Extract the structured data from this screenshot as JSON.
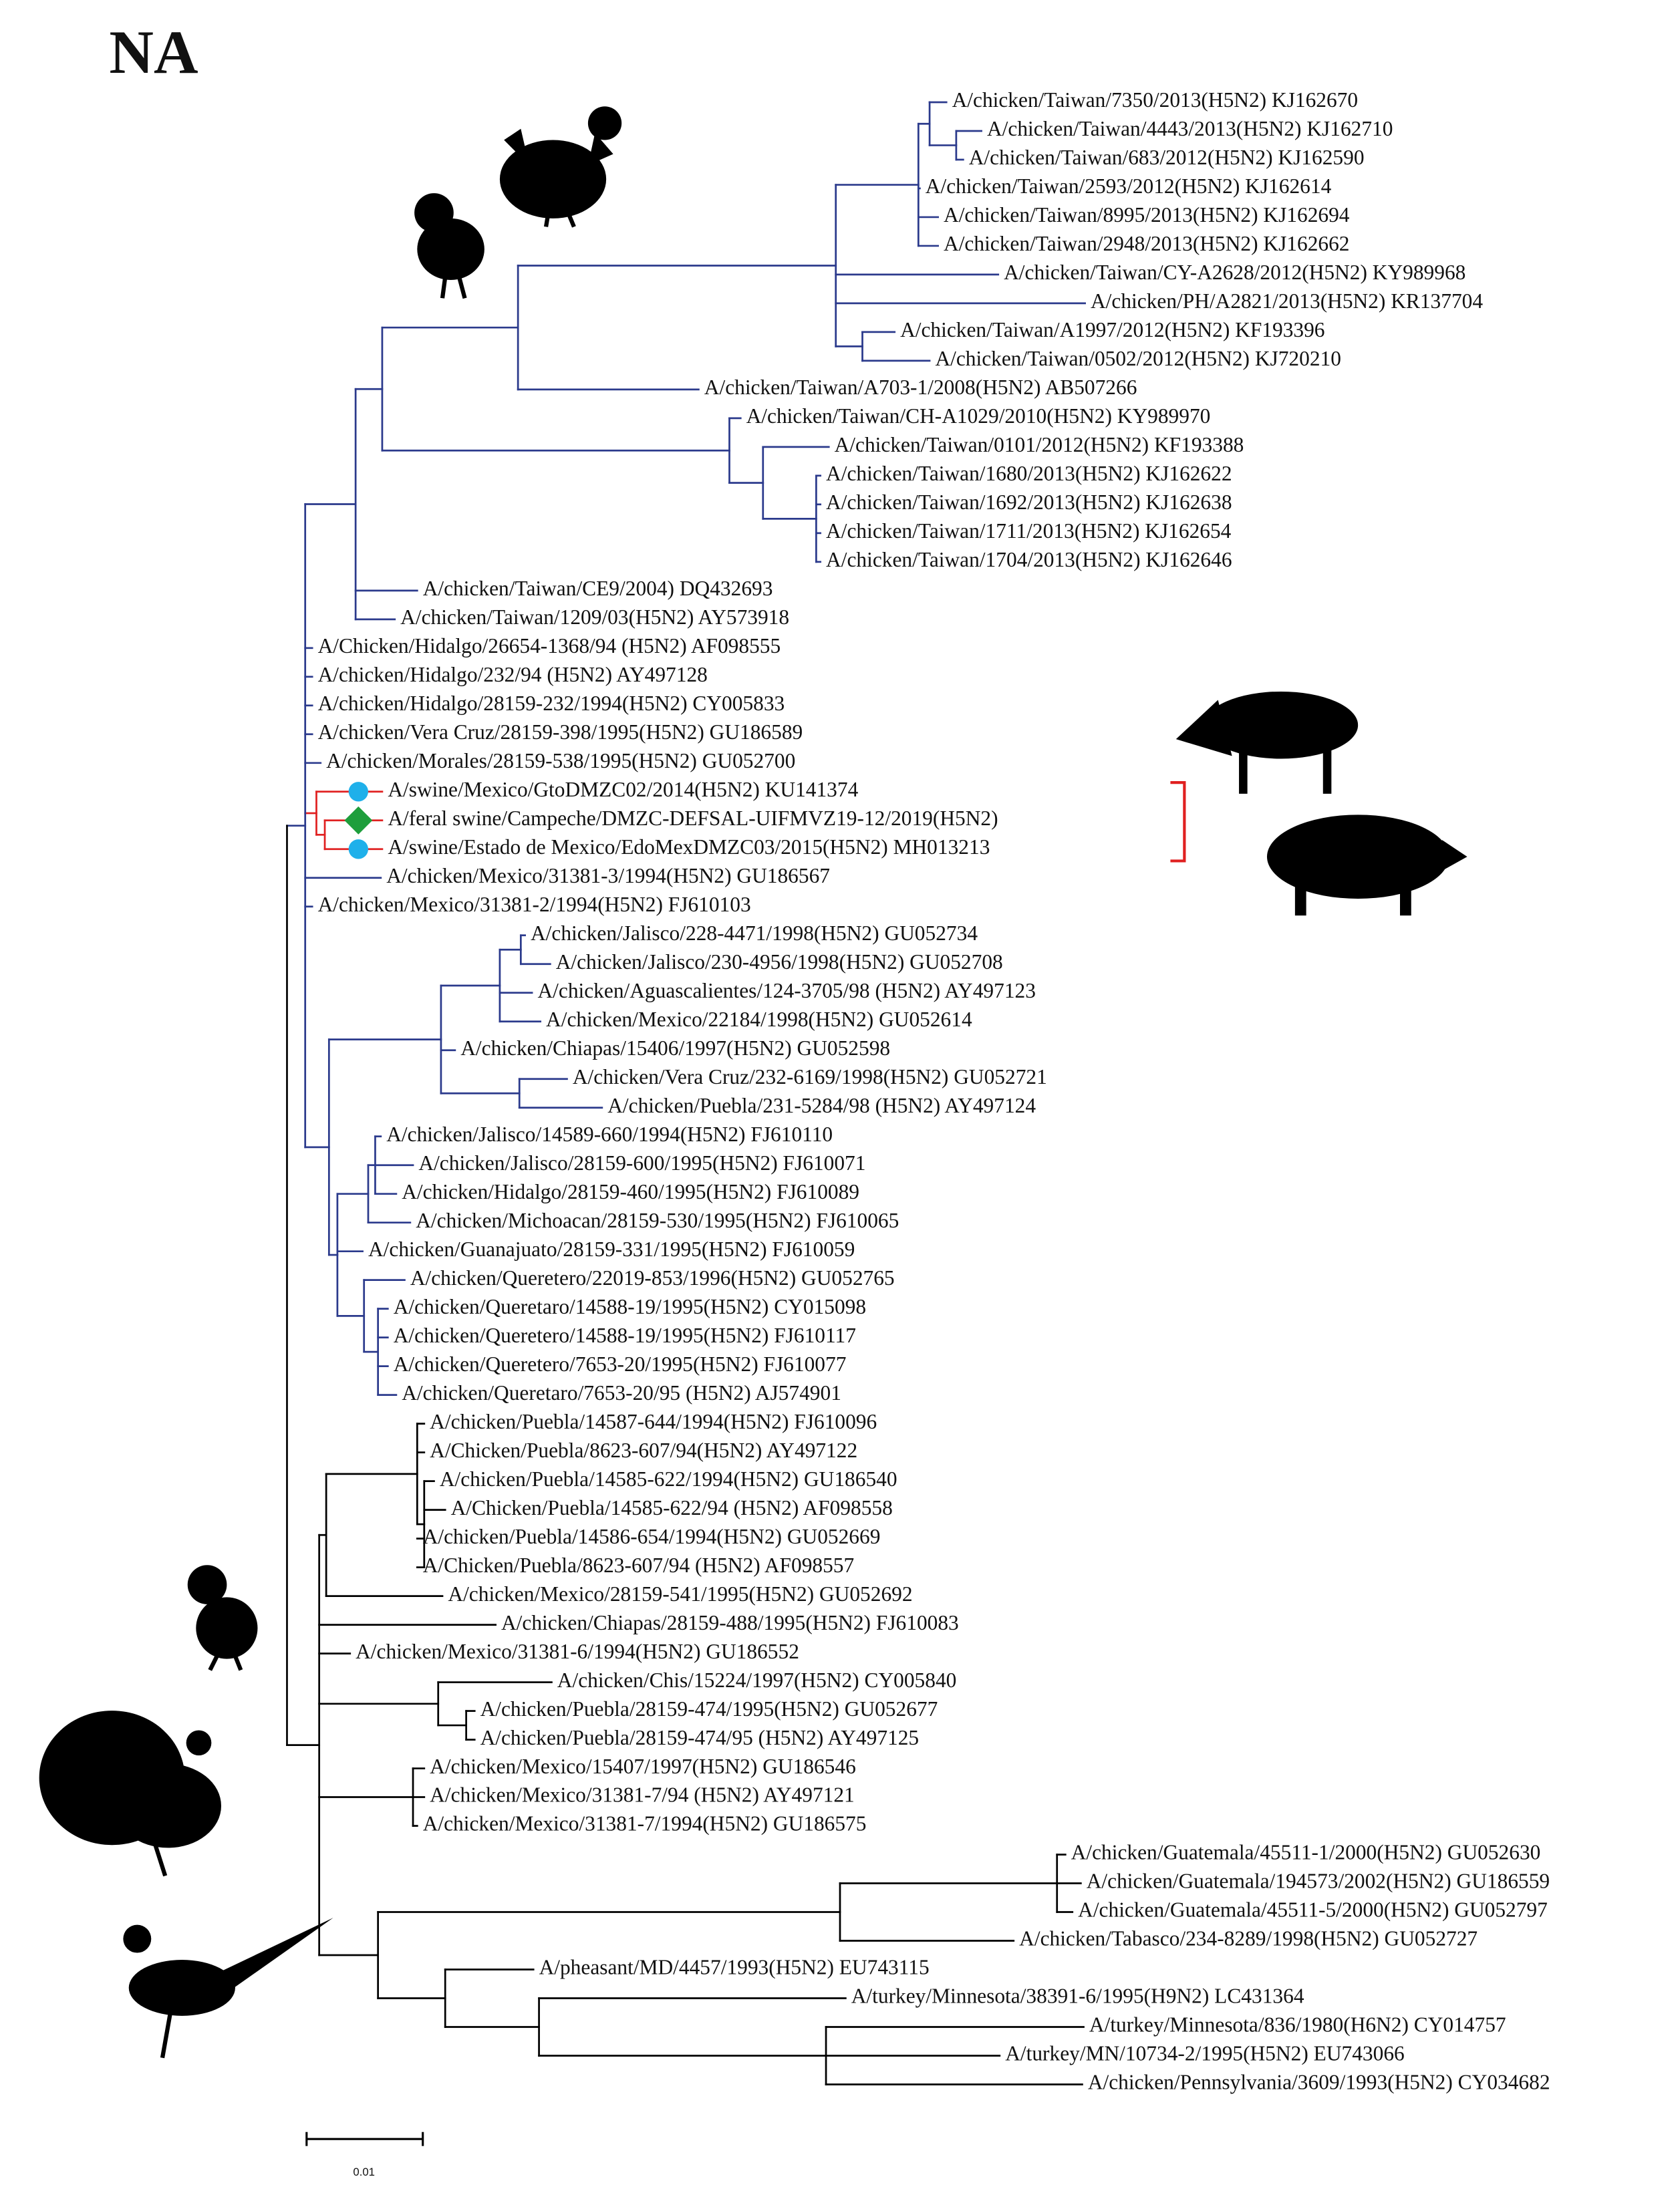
{
  "title": "NA",
  "leaves": [
    "A/chicken/Taiwan/7350/2013(H5N2) KJ162670",
    "A/chicken/Taiwan/4443/2013(H5N2) KJ162710",
    "A/chicken/Taiwan/683/2012(H5N2) KJ162590",
    "A/chicken/Taiwan/2593/2012(H5N2) KJ162614",
    "A/chicken/Taiwan/8995/2013(H5N2) KJ162694",
    "A/chicken/Taiwan/2948/2013(H5N2) KJ162662",
    "A/chicken/Taiwan/CY-A2628/2012(H5N2) KY989968",
    "A/chicken/PH/A2821/2013(H5N2) KR137704",
    "A/chicken/Taiwan/A1997/2012(H5N2) KF193396",
    "A/chicken/Taiwan/0502/2012(H5N2) KJ720210",
    "A/chicken/Taiwan/A703-1/2008(H5N2) AB507266",
    "A/chicken/Taiwan/CH-A1029/2010(H5N2) KY989970",
    "A/chicken/Taiwan/0101/2012(H5N2) KF193388",
    "A/chicken/Taiwan/1680/2013(H5N2) KJ162622",
    "A/chicken/Taiwan/1692/2013(H5N2) KJ162638",
    "A/chicken/Taiwan/1711/2013(H5N2) KJ162654",
    "A/chicken/Taiwan/1704/2013(H5N2) KJ162646",
    "A/chicken/Taiwan/CE9/2004) DQ432693",
    "A/chicken/Taiwan/1209/03(H5N2) AY573918",
    "A/Chicken/Hidalgo/26654-1368/94 (H5N2) AF098555",
    "A/chicken/Hidalgo/232/94 (H5N2) AY497128",
    "A/chicken/Hidalgo/28159-232/1994(H5N2) CY005833",
    "A/chicken/Vera Cruz/28159-398/1995(H5N2) GU186589",
    "A/chicken/Morales/28159-538/1995(H5N2) GU052700",
    "A/swine/Mexico/GtoDMZC02/2014(H5N2) KU141374",
    "A/feral swine/Campeche/DMZC-DEFSAL-UIFMVZ19-12/2019(H5N2)",
    "A/swine/Estado de Mexico/EdoMexDMZC03/2015(H5N2) MH013213",
    "A/chicken/Mexico/31381-3/1994(H5N2) GU186567",
    "A/chicken/Mexico/31381-2/1994(H5N2) FJ610103",
    "A/chicken/Jalisco/228-4471/1998(H5N2) GU052734",
    "A/chicken/Jalisco/230-4956/1998(H5N2) GU052708",
    "A/chicken/Aguascalientes/124-3705/98 (H5N2) AY497123",
    "A/chicken/Mexico/22184/1998(H5N2) GU052614",
    "A/chicken/Chiapas/15406/1997(H5N2) GU052598",
    "A/chicken/Vera Cruz/232-6169/1998(H5N2) GU052721",
    "A/chicken/Puebla/231-5284/98 (H5N2) AY497124",
    "A/chicken/Jalisco/14589-660/1994(H5N2) FJ610110",
    "A/chicken/Jalisco/28159-600/1995(H5N2) FJ610071",
    "A/chicken/Hidalgo/28159-460/1995(H5N2) FJ610089",
    "A/chicken/Michoacan/28159-530/1995(H5N2) FJ610065",
    "A/chicken/Guanajuato/28159-331/1995(H5N2) FJ610059",
    "A/chicken/Queretero/22019-853/1996(H5N2) GU052765",
    "A/chicken/Queretaro/14588-19/1995(H5N2) CY015098",
    "A/chicken/Queretero/14588-19/1995(H5N2) FJ610117",
    "A/chicken/Queretero/7653-20/1995(H5N2) FJ610077",
    "A/chicken/Queretaro/7653-20/95 (H5N2) AJ574901",
    "A/chicken/Puebla/14587-644/1994(H5N2) FJ610096",
    "A/Chicken/Puebla/8623-607/94(H5N2) AY497122",
    "A/chicken/Puebla/14585-622/1994(H5N2) GU186540",
    "A/Chicken/Puebla/14585-622/94 (H5N2) AF098558",
    "A/chicken/Puebla/14586-654/1994(H5N2) GU052669",
    "A/Chicken/Puebla/8623-607/94 (H5N2) AF098557",
    "A/chicken/Mexico/28159-541/1995(H5N2) GU052692",
    "A/chicken/Chiapas/28159-488/1995(H5N2) FJ610083",
    "A/chicken/Mexico/31381-6/1994(H5N2) GU186552",
    "A/chicken/Chis/15224/1997(H5N2) CY005840",
    "A/chicken/Puebla/28159-474/1995(H5N2) GU052677",
    "A/chicken/Puebla/28159-474/95 (H5N2) AY497125",
    "A/chicken/Mexico/15407/1997(H5N2) GU186546",
    "A/chicken/Mexico/31381-7/94 (H5N2) AY497121",
    "A/chicken/Mexico/31381-7/1994(H5N2) GU186575",
    "A/chicken/Guatemala/45511-1/2000(H5N2) GU052630",
    "A/chicken/Guatemala/194573/2002(H5N2) GU186559",
    "A/chicken/Guatemala/45511-5/2000(H5N2) GU052797",
    "A/chicken/Tabasco/234-8289/1998(H5N2) GU052727",
    "A/pheasant/MD/4457/1993(H5N2) EU743115",
    "A/turkey/Minnesota/38391-6/1995(H9N2) LC431364",
    "A/turkey/Minnesota/836/1980(H6N2) CY014757",
    "A/turkey/MN/10734-2/1995(H5N2) EU743066",
    "A/chicken/Pennsylvania/3609/1993(H5N2) CY034682"
  ],
  "scale_bar": {
    "label": "0.01"
  }
}
